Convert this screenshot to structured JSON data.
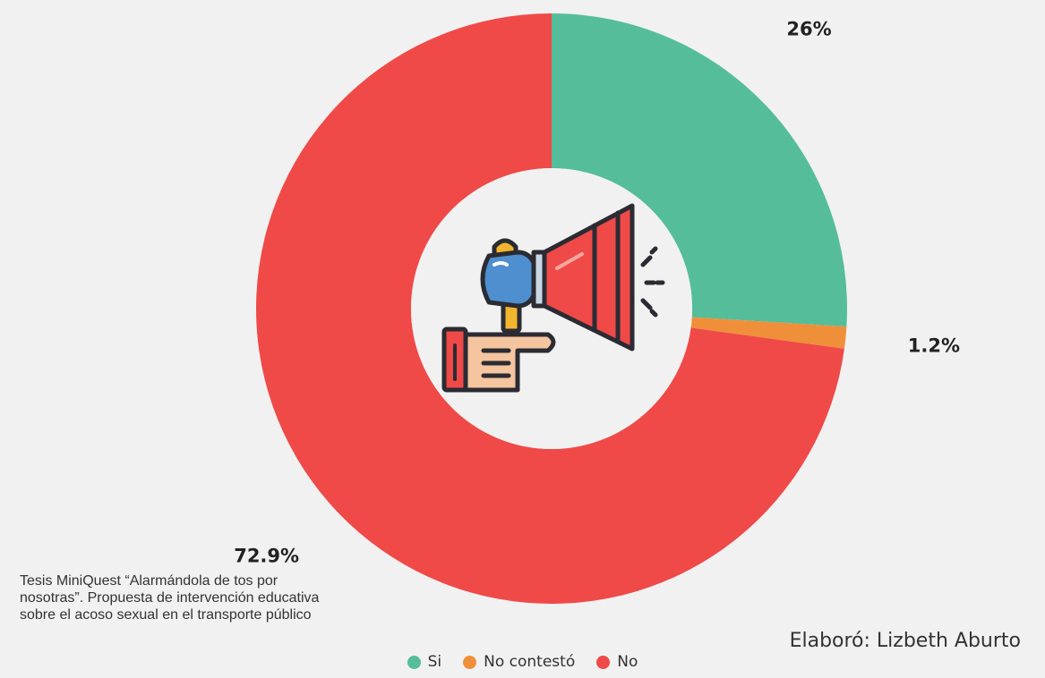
{
  "chart_data": {
    "type": "pie",
    "donut": true,
    "categories": [
      "Si",
      "No contestó",
      "No"
    ],
    "values": [
      26,
      1.2,
      72.9
    ],
    "labels": [
      "26%",
      "1.2%",
      "72.9%"
    ],
    "colors": [
      "#55bd9a",
      "#f08f3a",
      "#ef4a48"
    ],
    "legend_position": "bottom",
    "center_icon": "megaphone-icon"
  },
  "source_note": "Tesis MiniQuest “Alarmándola de tos por nosotras”. Propuesta de intervención educativa sobre el acoso sexual en el transporte público",
  "credit": "Elaboró: Lizbeth Aburto"
}
